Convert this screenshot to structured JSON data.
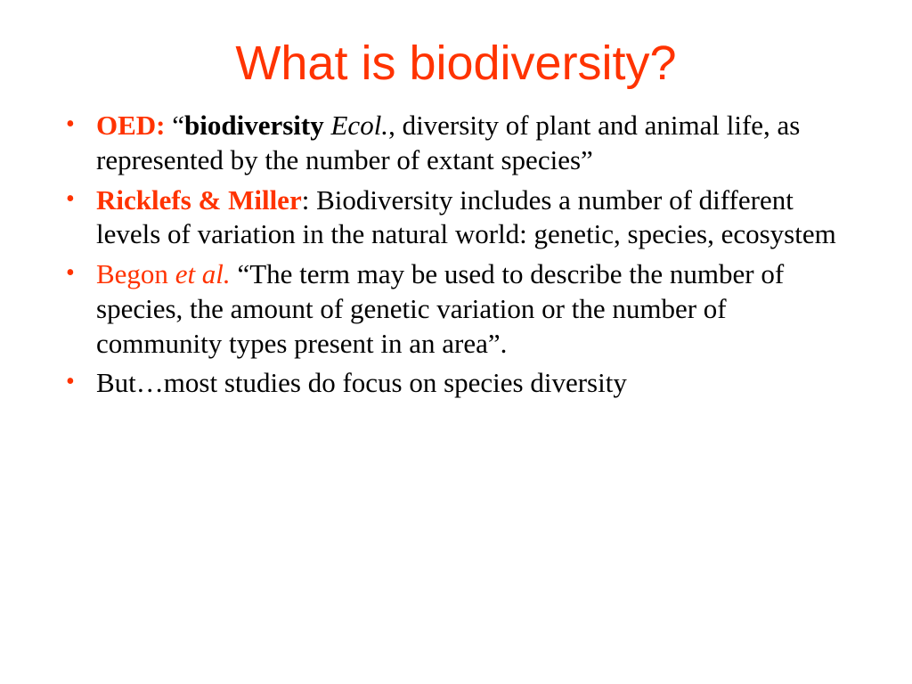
{
  "colors": {
    "accent": "#ff3300",
    "text": "#000000",
    "background": "#ffffff"
  },
  "title": "What is biodiversity?",
  "bullets": [
    {
      "source_label": "OED:",
      "source_style": "bold-accent",
      "pre_quote": " “",
      "emph1": "biodiversity",
      "emph1_style": "bold",
      "space1": " ",
      "emph2": "Ecol.",
      "emph2_style": "italic",
      "rest": ", diversity of plant and animal life, as represented by the number of extant species”"
    },
    {
      "source_label": "Ricklefs & Miller",
      "source_style": "bold-accent",
      "rest": ": Biodiversity includes a number of different levels of variation in the natural world: genetic, species, ecosystem"
    },
    {
      "source_label": "Begon ",
      "source_style": "accent",
      "emph1": "et al.",
      "emph1_style": "italic-accent",
      "rest": " “The term may be used to describe the number of species, the amount of genetic variation or the number of community types present in an area”."
    },
    {
      "rest": "But…most studies do focus on species diversity"
    }
  ]
}
